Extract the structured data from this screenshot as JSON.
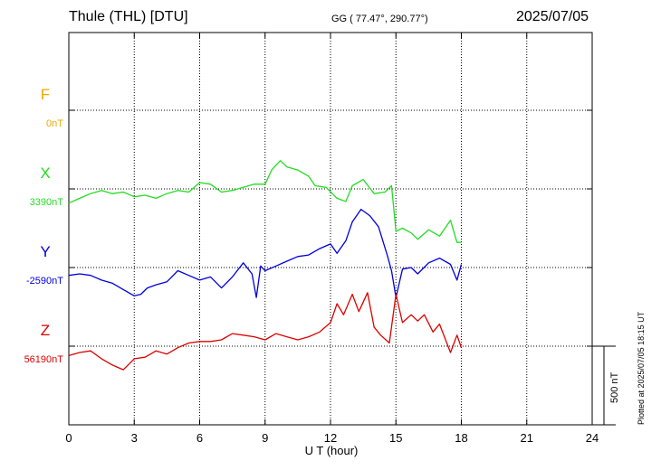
{
  "header": {
    "station": "Thule (THL)  [DTU]",
    "coords": "GG ( 77.47°, 290.77°)",
    "date": "2025/07/05"
  },
  "plotted_at": "Plotted at 2025/07/05 18:15 UT",
  "scale": {
    "label": "500 nT",
    "nT": 500
  },
  "colors": {
    "F": "#f0a800",
    "X": "#22dd22",
    "Y": "#0000dd",
    "Z": "#dd0000",
    "axis": "#000000",
    "grid": "#000000"
  },
  "chart_data": {
    "type": "line",
    "xlabel": "U T (hour)",
    "xlim": [
      0,
      24
    ],
    "xticks": [
      0,
      3,
      6,
      9,
      12,
      15,
      18,
      21,
      24
    ],
    "grid": true,
    "series": [
      {
        "name": "F",
        "baseline": "0nT",
        "x": [],
        "y": []
      },
      {
        "name": "X",
        "baseline": "3390nT",
        "x": [
          0,
          0.5,
          1,
          1.5,
          2,
          2.5,
          3,
          3.5,
          4,
          4.5,
          5,
          5.5,
          6,
          6.5,
          7,
          7.5,
          8,
          8.5,
          9,
          9.3,
          9.7,
          10,
          10.5,
          11,
          11.3,
          11.8,
          12.3,
          12.7,
          13,
          13.5,
          14,
          14.5,
          14.8,
          15,
          15.3,
          15.7,
          16,
          16.5,
          17,
          17.5,
          17.8,
          18
        ],
        "y": [
          -90,
          -60,
          -30,
          -10,
          -30,
          -20,
          -50,
          -40,
          -60,
          -30,
          -10,
          -20,
          40,
          30,
          -20,
          -10,
          10,
          30,
          30,
          120,
          180,
          140,
          120,
          80,
          20,
          10,
          -60,
          -80,
          20,
          60,
          -30,
          -20,
          20,
          -270,
          -250,
          -280,
          -320,
          -260,
          -300,
          -200,
          -340,
          -340
        ]
      },
      {
        "name": "Y",
        "baseline": "-2590nT",
        "x": [
          0,
          0.5,
          1,
          1.5,
          2,
          2.5,
          3,
          3.3,
          3.6,
          4,
          4.5,
          5,
          5.5,
          6,
          6.5,
          7,
          7.5,
          8,
          8.4,
          8.6,
          8.8,
          9,
          9.5,
          10,
          10.5,
          11,
          11.5,
          12,
          12.3,
          12.7,
          13,
          13.4,
          13.8,
          14.2,
          14.6,
          14.8,
          15,
          15.3,
          15.7,
          16,
          16.5,
          17,
          17.5,
          17.8,
          18
        ],
        "y": [
          -50,
          -40,
          -50,
          -80,
          -100,
          -140,
          -180,
          -170,
          -130,
          -110,
          -90,
          -20,
          -50,
          -80,
          -60,
          -130,
          -60,
          30,
          -40,
          -190,
          10,
          -20,
          10,
          40,
          70,
          80,
          120,
          150,
          90,
          170,
          290,
          370,
          330,
          260,
          80,
          -20,
          -190,
          -10,
          0,
          -40,
          30,
          60,
          20,
          -80,
          20
        ]
      },
      {
        "name": "Z",
        "baseline": "56190nT",
        "x": [
          0,
          0.5,
          1,
          1.5,
          2,
          2.5,
          3,
          3.5,
          4,
          4.5,
          5,
          5.5,
          6,
          6.5,
          7,
          7.5,
          8,
          8.5,
          9,
          9.5,
          10,
          10.5,
          11,
          11.5,
          12,
          12.3,
          12.6,
          13,
          13.3,
          13.7,
          14,
          14.3,
          14.7,
          15,
          15.3,
          15.7,
          16,
          16.3,
          16.7,
          17,
          17.5,
          17.8,
          18
        ],
        "y": [
          -60,
          -40,
          -30,
          -80,
          -120,
          -150,
          -80,
          -70,
          -30,
          -50,
          -10,
          20,
          30,
          30,
          40,
          80,
          70,
          60,
          40,
          80,
          60,
          40,
          60,
          90,
          150,
          270,
          200,
          330,
          220,
          340,
          120,
          70,
          20,
          330,
          150,
          200,
          160,
          200,
          90,
          140,
          -40,
          70,
          -10
        ]
      }
    ]
  }
}
